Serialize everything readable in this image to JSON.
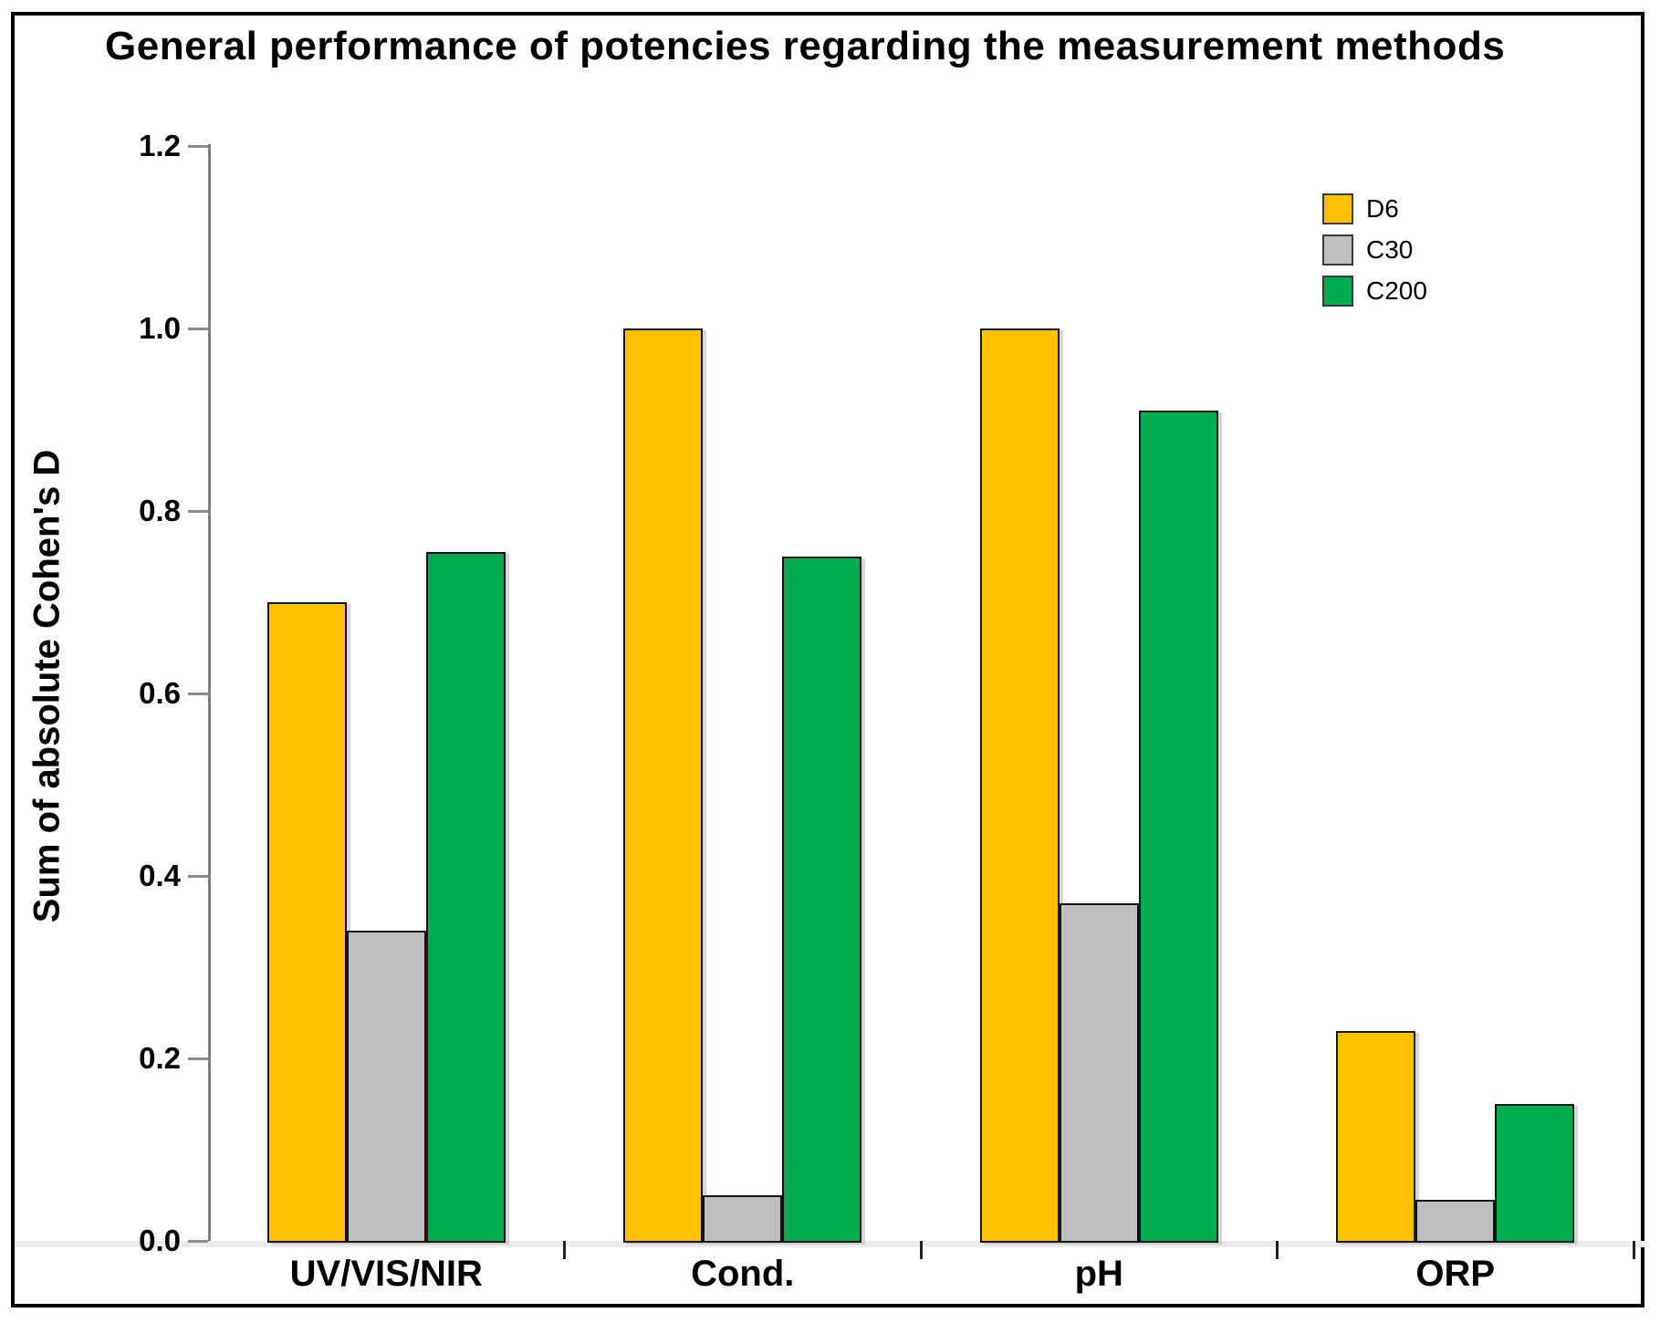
{
  "chart_data": {
    "type": "bar",
    "title": "General performance of potencies regarding the measurement methods",
    "ylabel": "Sum of absolute Cohen's D",
    "xlabel": "",
    "categories": [
      "UV/VIS/NIR",
      "Cond.",
      "pH",
      "ORP"
    ],
    "series": [
      {
        "name": "D6",
        "color": "#FFC000",
        "values": [
          0.7,
          1.0,
          1.0,
          0.23
        ]
      },
      {
        "name": "C30",
        "color": "#BFBFBF",
        "values": [
          0.34,
          0.05,
          0.37,
          0.045
        ]
      },
      {
        "name": "C200",
        "color": "#00AC50",
        "values": [
          0.755,
          0.75,
          0.91,
          0.15
        ]
      }
    ],
    "ylim": [
      0.0,
      1.2
    ],
    "y_ticks": [
      0.0,
      0.2,
      0.4,
      0.6,
      0.8,
      1.0,
      1.2
    ],
    "grid": false,
    "legend_position": "upper-right",
    "bar_border_color": "#141414",
    "axis_color": "#7f7f7f"
  }
}
